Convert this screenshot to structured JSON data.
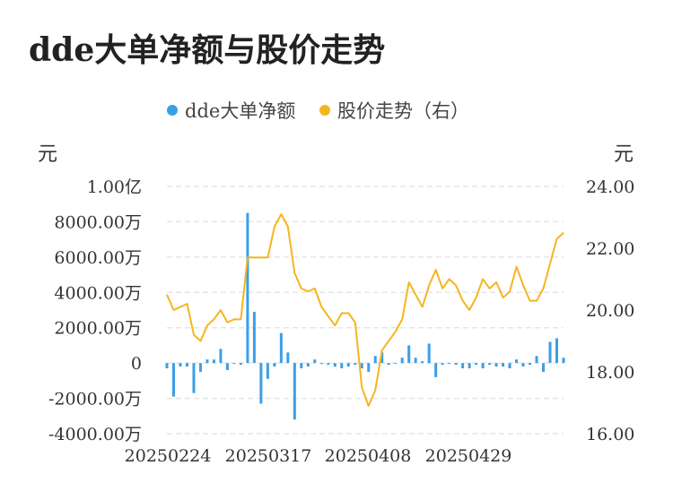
{
  "title": "dde大单净额与股价走势",
  "legend": {
    "series1": "dde大单净额",
    "series2": "股价走势（右）"
  },
  "units": {
    "left": "元",
    "right": "元"
  },
  "colors": {
    "bar": "#3a9fe8",
    "line": "#f5b51f",
    "grid": "#e6e6e6"
  },
  "chart_data": {
    "type": "bar+line",
    "x_ticks": [
      "20250224",
      "20250317",
      "20250408",
      "20250429"
    ],
    "left_axis": {
      "ticks": [
        "1.00亿",
        "8000.00万",
        "6000.00万",
        "4000.00万",
        "2000.00万",
        "0",
        "-2000.00万",
        "-4000.00万"
      ],
      "range": [
        -4000,
        10000
      ],
      "unit": "万"
    },
    "right_axis": {
      "ticks": [
        "24.00",
        "22.00",
        "20.00",
        "18.00",
        "16.00"
      ],
      "range": [
        16,
        24
      ]
    },
    "series": [
      {
        "name": "dde大单净额",
        "type": "bar",
        "values": [
          -300,
          -1900,
          -200,
          -200,
          -1700,
          -500,
          200,
          200,
          800,
          -400,
          0,
          -100,
          8500,
          2900,
          -2300,
          -900,
          -200,
          1700,
          600,
          -3200,
          -300,
          -200,
          200,
          0,
          -100,
          -200,
          -300,
          -200,
          -100,
          -300,
          -500,
          400,
          600,
          -100,
          0,
          300,
          1000,
          300,
          100,
          1100,
          -800,
          -100,
          0,
          -100,
          -300,
          -300,
          -100,
          -300,
          -100,
          -200,
          -200,
          -300,
          200,
          -200,
          -100,
          400,
          -500,
          1200,
          1400,
          300
        ]
      },
      {
        "name": "股价走势（右）",
        "type": "line",
        "values": [
          20.5,
          20.0,
          20.1,
          20.2,
          19.2,
          19.0,
          19.5,
          19.7,
          20.0,
          19.6,
          19.7,
          19.7,
          21.7,
          21.7,
          21.7,
          21.7,
          22.7,
          23.1,
          22.7,
          21.2,
          20.7,
          20.6,
          20.7,
          20.1,
          19.8,
          19.5,
          19.9,
          19.9,
          19.6,
          17.5,
          16.9,
          17.4,
          18.7,
          19.0,
          19.3,
          19.7,
          20.9,
          20.5,
          20.1,
          20.8,
          21.3,
          20.7,
          21.0,
          20.8,
          20.3,
          20.0,
          20.4,
          21.0,
          20.7,
          20.9,
          20.4,
          20.6,
          21.4,
          20.8,
          20.3,
          20.3,
          20.7,
          21.5,
          22.3,
          22.5
        ]
      }
    ]
  }
}
